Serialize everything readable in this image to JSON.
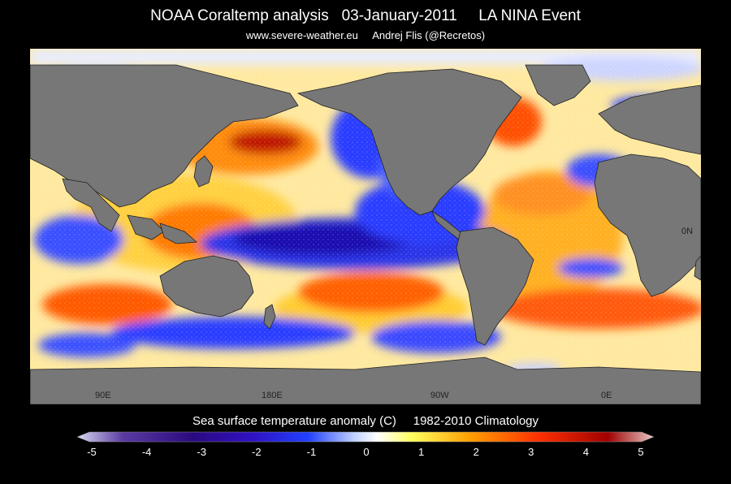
{
  "header": {
    "title": "NOAA Coraltemp analysis   03-January-2011     LA NINA Event",
    "subtitle": "www.severe-weather.eu     Andrej Flis (@Recretos)"
  },
  "map": {
    "lon_labels": [
      "90E",
      "180E",
      "90W",
      "0E"
    ],
    "lat_labels": [
      "0N"
    ],
    "land_color": "#777777",
    "colors": {
      "strong_cold": "#1a10b0",
      "cold": "#2a3cff",
      "weak_cold": "#9aaeff",
      "neutral": "#ffffff",
      "weak_warm": "#ffe84a",
      "warm": "#ff8a00",
      "strong_warm": "#e02000"
    }
  },
  "colorbar": {
    "title": "Sea surface temperature anomaly (C)     1982-2010 Climatology",
    "ticks": [
      "-5",
      "-4",
      "-3",
      "-2",
      "-1",
      "0",
      "1",
      "2",
      "3",
      "4",
      "5"
    ]
  }
}
